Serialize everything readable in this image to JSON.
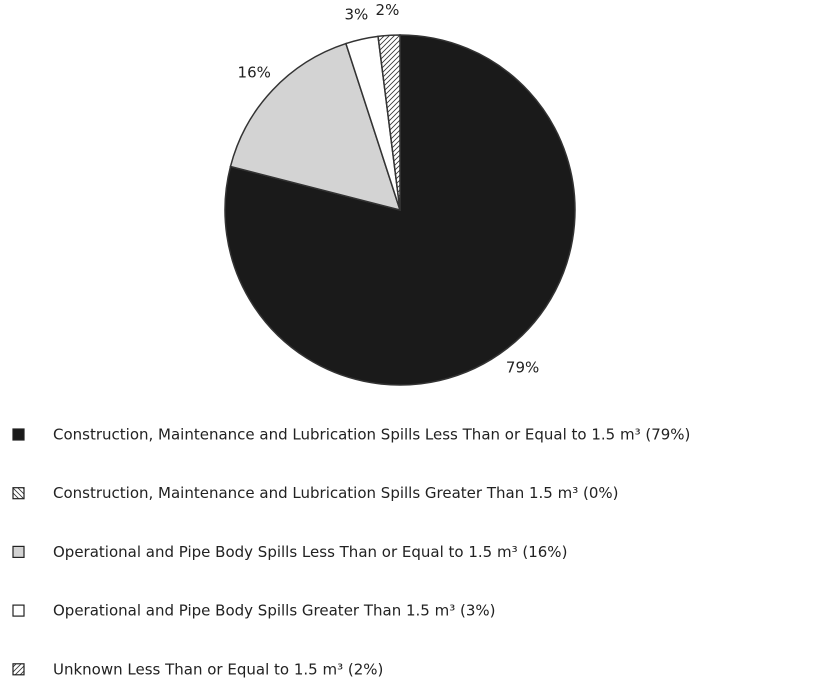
{
  "chart_data": {
    "type": "pie",
    "series": [
      {
        "name": "Construction, Maintenance and Lubrication Spills Less Than or Equal to 1.5 m³ (79%)",
        "color": "#1a1a1a",
        "values": [
          79
        ],
        "value_labels": [
          "79%"
        ]
      },
      {
        "name": "Construction, Maintenance and Lubrication Spills Greater Than 1.5 m³ (0%)",
        "color": "#ffffff",
        "pattern": "hatch-down",
        "values": [
          0
        ],
        "value_labels": [
          null
        ]
      },
      {
        "name": "Operational and Pipe Body Spills Less Than or Equal to 1.5 m³ (16%)",
        "color": "#d3d3d3",
        "values": [
          16
        ],
        "value_labels": [
          "16%"
        ]
      },
      {
        "name": "Operational and Pipe Body Spills Greater Than 1.5 m³ (3%)",
        "color": "#ffffff",
        "values": [
          3
        ],
        "value_labels": [
          "3%"
        ]
      },
      {
        "name": "Unknown Less Than or Equal to 1.5 m³ (2%)",
        "color": "#ffffff",
        "pattern": "hatch-up",
        "values": [
          2
        ],
        "value_labels": [
          "2%"
        ]
      }
    ]
  }
}
